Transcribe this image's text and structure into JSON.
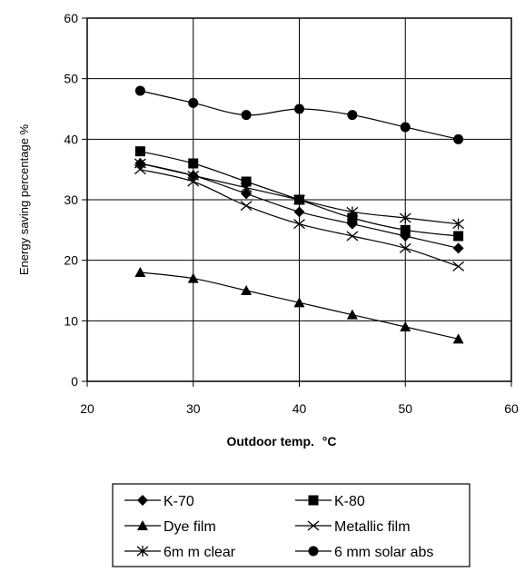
{
  "chart_data": {
    "type": "line",
    "xlabel": "Outdoor temp.",
    "xlabel_unit": "°C",
    "ylabel": "Energy saving percentage %",
    "xlim": [
      20,
      60
    ],
    "ylim": [
      0,
      60
    ],
    "xticks": [
      20,
      30,
      40,
      50,
      60
    ],
    "yticks": [
      0,
      10,
      20,
      30,
      40,
      50,
      60
    ],
    "grid": true,
    "legend_position": "bottom",
    "x": [
      25,
      30,
      35,
      40,
      45,
      50,
      55
    ],
    "series": [
      {
        "name": "K-70",
        "marker": "diamond",
        "values": [
          36,
          34,
          31,
          28,
          26,
          24,
          22
        ]
      },
      {
        "name": "K-80",
        "marker": "square",
        "values": [
          38,
          36,
          33,
          30,
          27,
          25,
          24
        ]
      },
      {
        "name": "Dye film",
        "marker": "triangle",
        "values": [
          18,
          17,
          15,
          13,
          11,
          9,
          7
        ]
      },
      {
        "name": "Metallic film",
        "marker": "x",
        "values": [
          35,
          33,
          29,
          26,
          24,
          22,
          19
        ]
      },
      {
        "name": "6m m clear",
        "marker": "star",
        "values": [
          36,
          34,
          32,
          30,
          28,
          27,
          26
        ]
      },
      {
        "name": "6 mm solar abs",
        "marker": "circle",
        "values": [
          48,
          46,
          44,
          45,
          44,
          42,
          40
        ]
      }
    ]
  }
}
